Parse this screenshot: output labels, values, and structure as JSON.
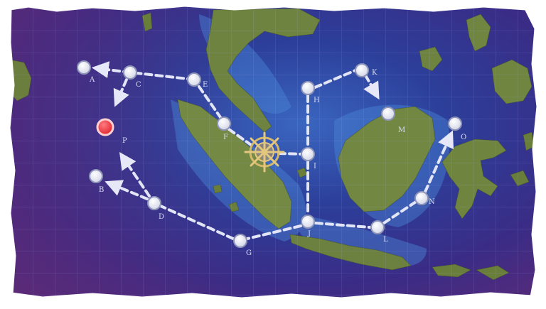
{
  "map": {
    "palette": {
      "ocean_deep": "#2a2f86",
      "ocean_purple": "#5a2a78",
      "shallow": "#3f6fc4",
      "land": "#6a7d3c",
      "land_light": "#8a9a52",
      "route": "#dfe2f7",
      "node_fill": "#ffffff",
      "node_ring": "#9aa0c0",
      "start_node": "#ef3c45",
      "compass": "#d6b86a",
      "frame": "#ffffff"
    },
    "start_marker": {
      "icon": "ship-wheel-icon"
    },
    "current_marker": {
      "icon": "red-node-marker"
    },
    "nodes": [
      {
        "id": "A",
        "label": "A"
      },
      {
        "id": "B",
        "label": "B"
      },
      {
        "id": "C",
        "label": "C"
      },
      {
        "id": "D",
        "label": "D"
      },
      {
        "id": "E",
        "label": "E"
      },
      {
        "id": "F",
        "label": "F"
      },
      {
        "id": "G",
        "label": "G"
      },
      {
        "id": "H",
        "label": "H"
      },
      {
        "id": "I",
        "label": "I"
      },
      {
        "id": "J",
        "label": "J"
      },
      {
        "id": "K",
        "label": "K"
      },
      {
        "id": "L",
        "label": "L"
      },
      {
        "id": "M",
        "label": "M"
      },
      {
        "id": "N",
        "label": "N"
      },
      {
        "id": "O",
        "label": "O"
      },
      {
        "id": "P",
        "label": "P"
      }
    ]
  }
}
